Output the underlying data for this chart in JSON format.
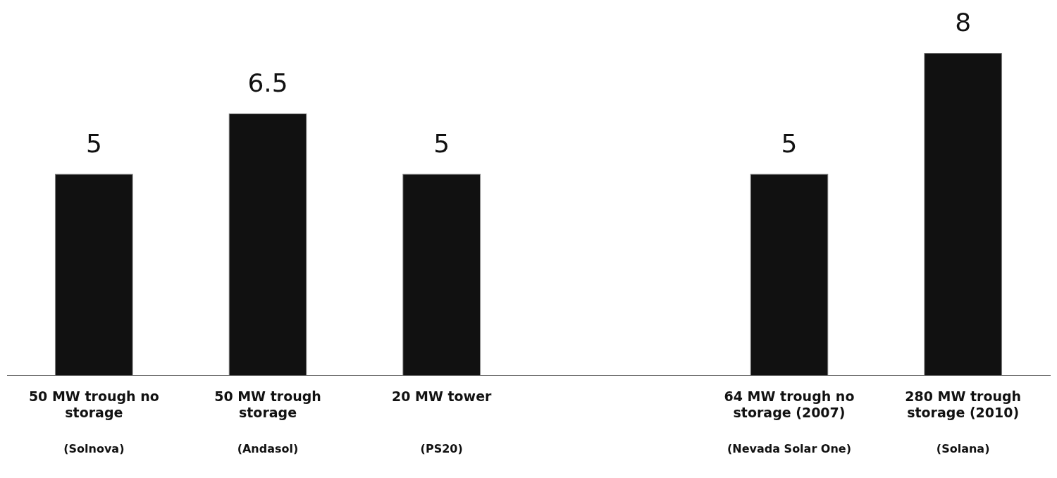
{
  "chart_data": {
    "type": "bar",
    "categories": [
      "50 MW trough no storage",
      "50 MW trough storage",
      "20 MW tower",
      null,
      "64 MW trough no storage (2007)",
      "280 MW trough storage (2010)"
    ],
    "values": [
      5,
      6.5,
      5,
      null,
      5,
      8
    ],
    "color": "#111111",
    "data_labels": true,
    "annotations": [
      "(Solnova)",
      "(Andasol)",
      "(PS20)",
      "(Nevada Solar One)",
      "(Solana)"
    ],
    "grid": false,
    "legend": false
  }
}
